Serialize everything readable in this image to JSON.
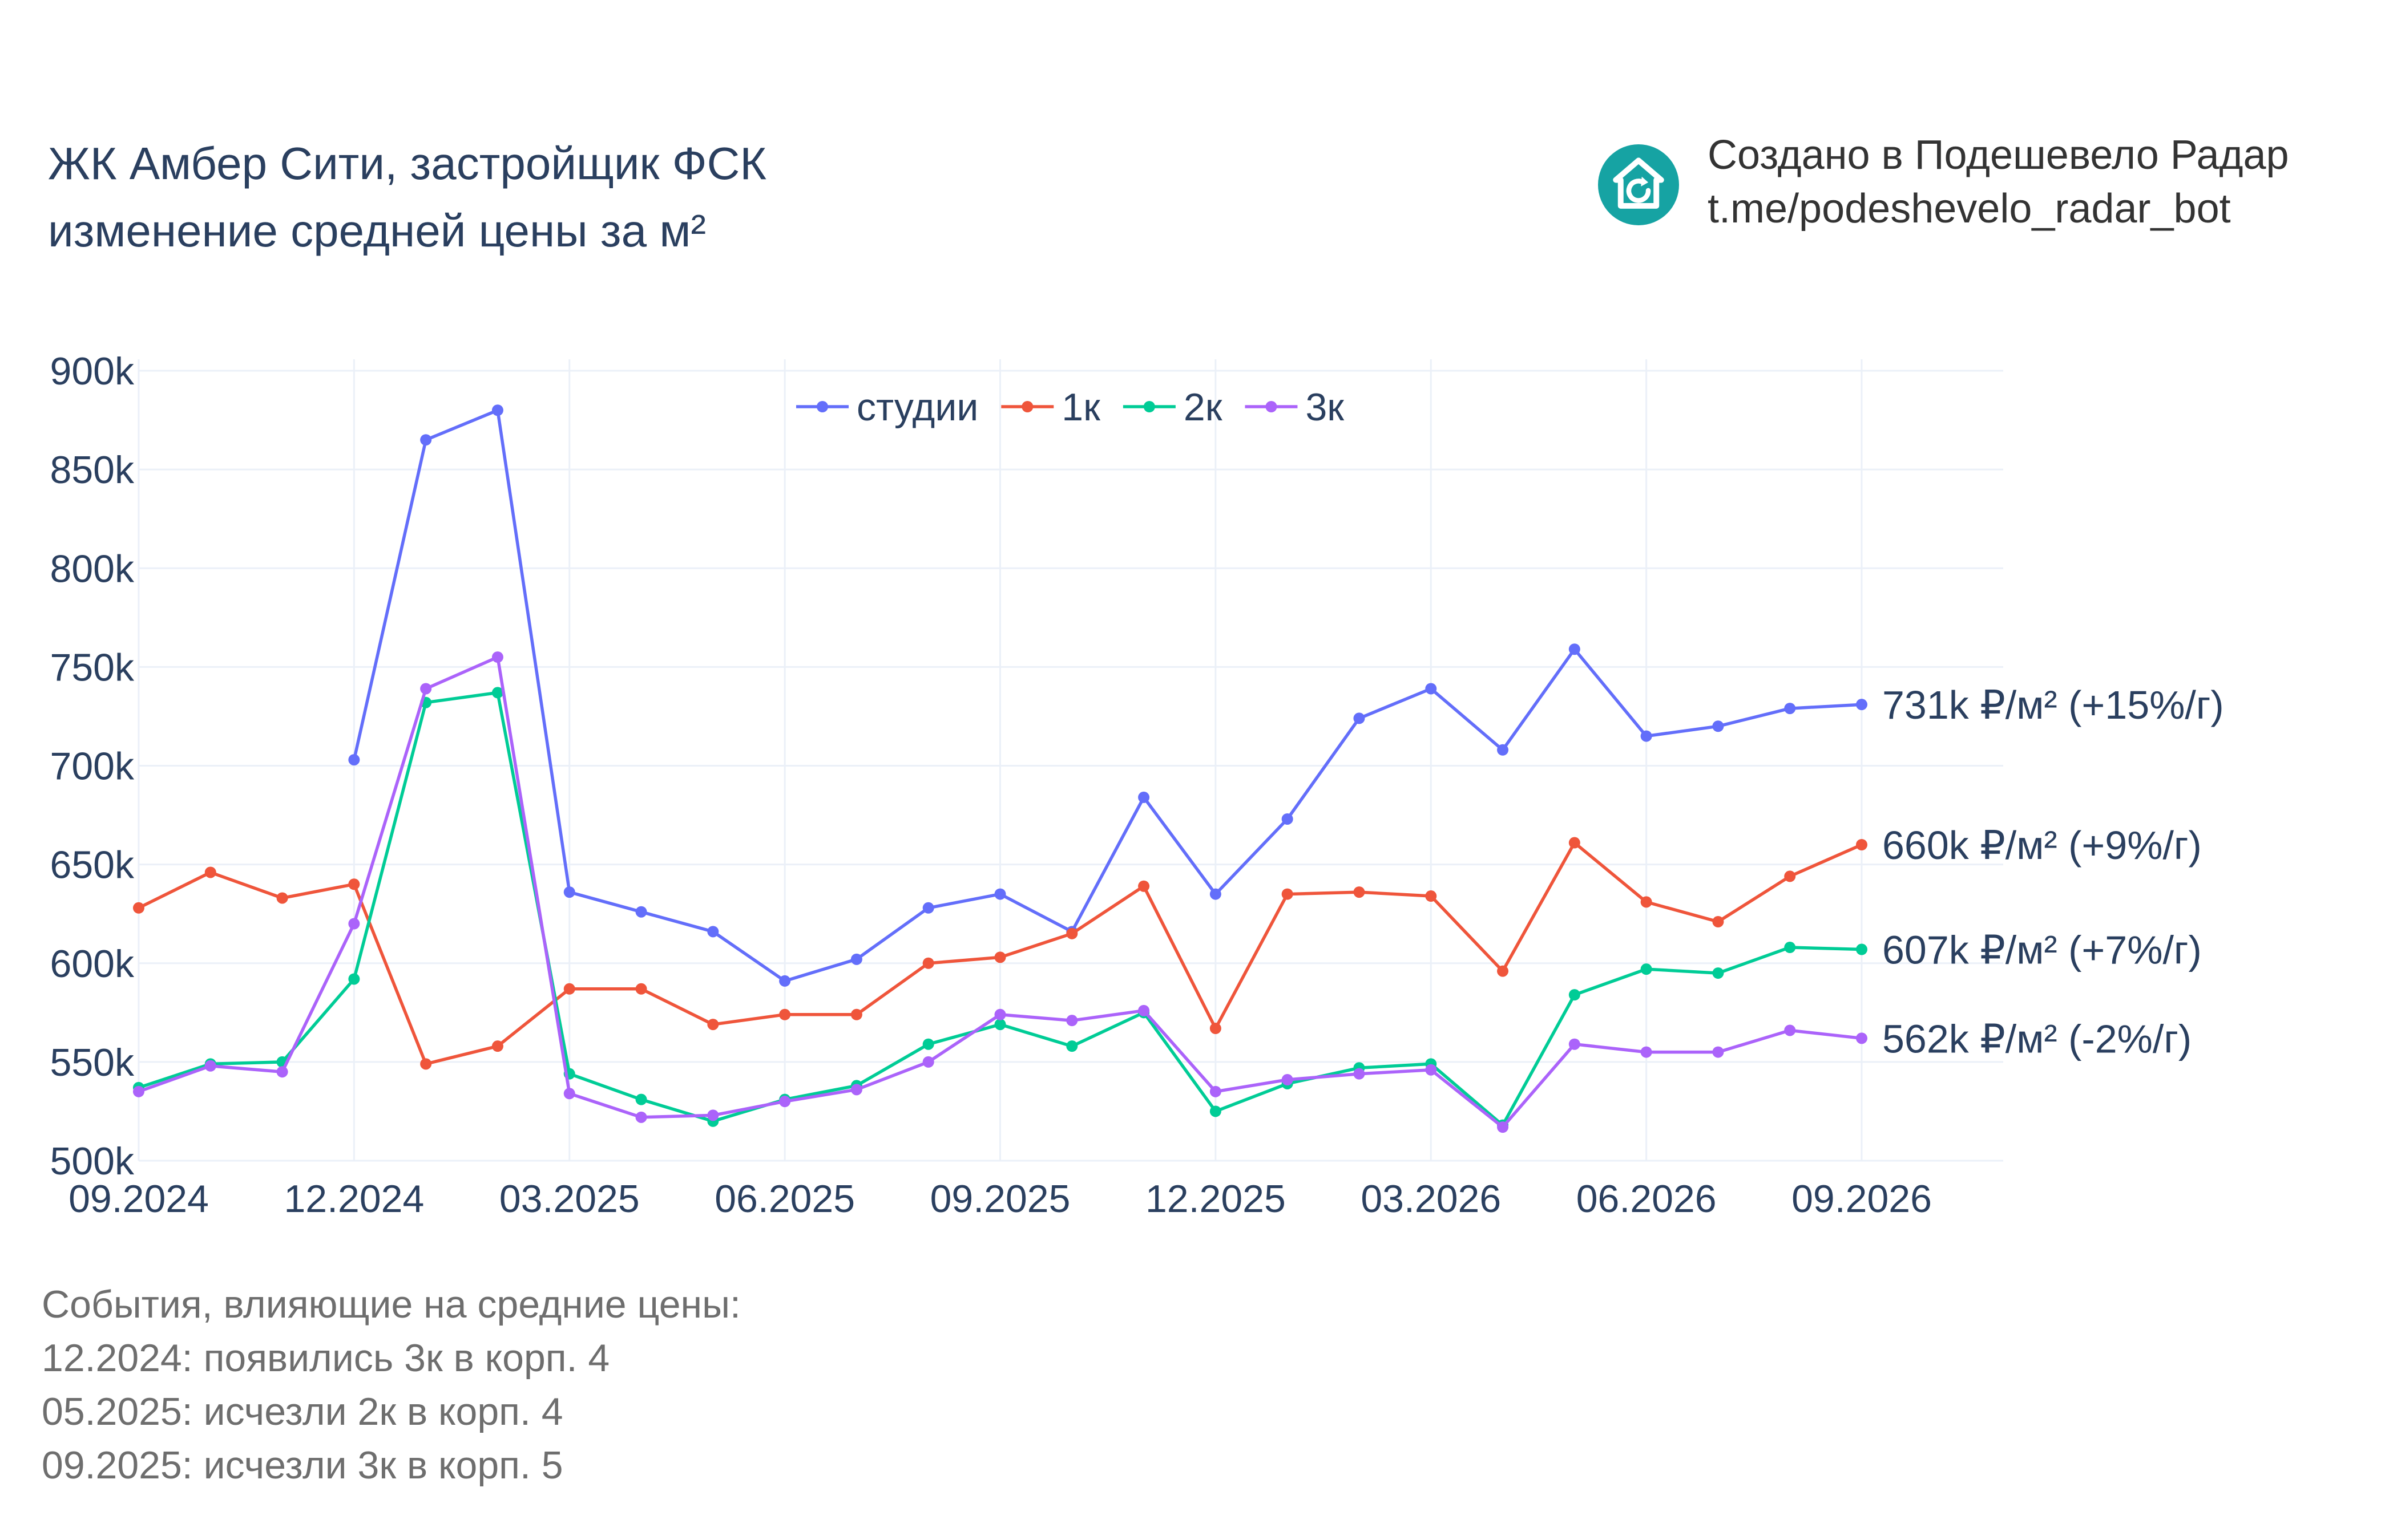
{
  "title": {
    "line1": "ЖК Амбер Сити, застройщик ФСК",
    "line2": "изменение средней цены за м²"
  },
  "credit": {
    "line1": "Создано в Подешевело Радар",
    "line2": "t.me/podeshevelo_radar_bot",
    "icon": "house-refresh-icon",
    "icon_color": "#16a3a3"
  },
  "events": {
    "heading": "События, влияющие на средние цены:",
    "items": [
      "12.2024: появились 3к в корп. 4",
      "05.2025: исчезли 2к в корп. 4",
      "09.2025: исчезли 3к в корп. 5"
    ]
  },
  "chart_data": {
    "type": "line",
    "x": [
      "09.2024",
      "10.2024",
      "11.2024",
      "12.2024",
      "01.2025",
      "02.2025",
      "03.2025",
      "04.2025",
      "05.2025",
      "06.2025",
      "07.2025",
      "08.2025",
      "09.2025",
      "10.2025",
      "11.2025",
      "12.2025",
      "01.2026",
      "02.2026",
      "03.2026",
      "04.2026",
      "05.2026",
      "06.2026",
      "07.2026",
      "08.2026",
      "09.2026"
    ],
    "x_ticks": [
      "09.2024",
      "12.2024",
      "03.2025",
      "06.2025",
      "09.2025",
      "12.2025",
      "03.2026",
      "06.2026",
      "09.2026"
    ],
    "y_ticks": [
      "500k",
      "550k",
      "600k",
      "650k",
      "700k",
      "750k",
      "800k",
      "850k",
      "900k"
    ],
    "ylim": [
      500000,
      900000
    ],
    "grid": true,
    "legend_position": "top-center",
    "series": [
      {
        "name": "студии",
        "color": "#636efa",
        "values": [
          null,
          null,
          null,
          703000,
          865000,
          880000,
          636000,
          626000,
          616000,
          591000,
          602000,
          628000,
          635000,
          616000,
          684000,
          635000,
          673000,
          724000,
          739000,
          708000,
          759000,
          715000,
          720000,
          729000,
          731000
        ],
        "end_label": "731k ₽/м² (+15%/г)"
      },
      {
        "name": "1к",
        "color": "#ef553b",
        "values": [
          628000,
          646000,
          633000,
          640000,
          549000,
          558000,
          587000,
          587000,
          569000,
          574000,
          574000,
          600000,
          603000,
          615000,
          639000,
          567000,
          635000,
          636000,
          634000,
          596000,
          661000,
          631000,
          621000,
          644000,
          660000
        ],
        "end_label": "660k ₽/м² (+9%/г)"
      },
      {
        "name": "2к",
        "color": "#00cc96",
        "values": [
          537000,
          549000,
          550000,
          592000,
          732000,
          737000,
          544000,
          531000,
          520000,
          531000,
          538000,
          559000,
          569000,
          558000,
          575000,
          525000,
          539000,
          547000,
          549000,
          518000,
          584000,
          597000,
          595000,
          608000,
          607000
        ],
        "end_label": "607k ₽/м² (+7%/г)"
      },
      {
        "name": "3к",
        "color": "#ab63fa",
        "values": [
          535000,
          548000,
          545000,
          620000,
          739000,
          755000,
          534000,
          522000,
          523000,
          530000,
          536000,
          550000,
          574000,
          571000,
          576000,
          535000,
          541000,
          544000,
          546000,
          517000,
          559000,
          555000,
          555000,
          566000,
          562000
        ],
        "end_label": "562k ₽/м² (-2%/г)"
      }
    ]
  }
}
